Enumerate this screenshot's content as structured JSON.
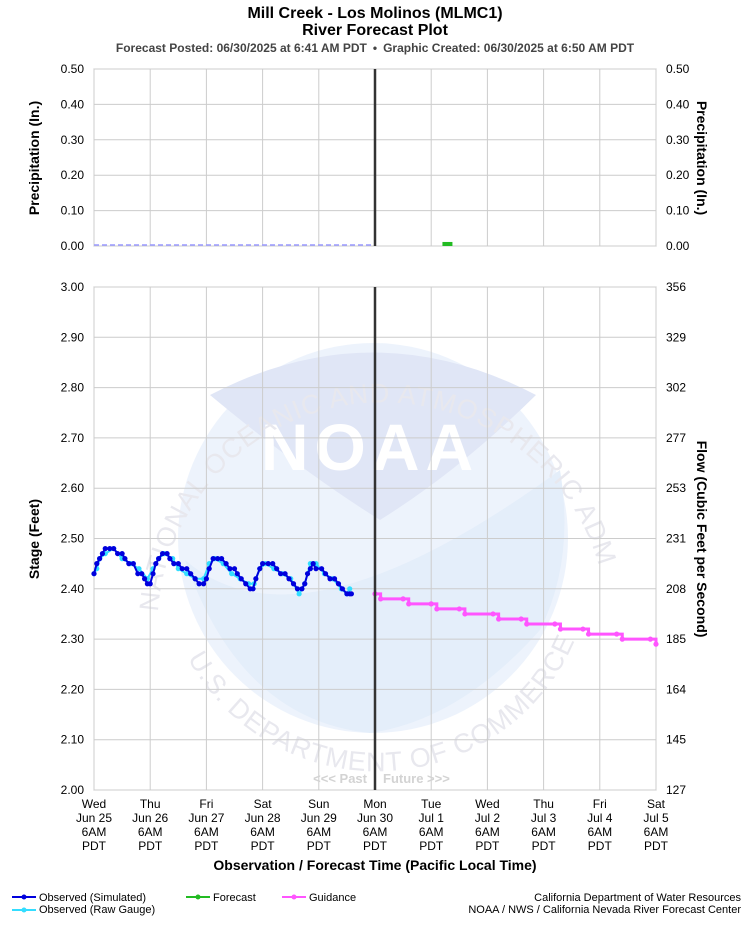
{
  "header": {
    "title": "Mill Creek - Los Molinos (MLMC1)",
    "subtitle": "River Forecast Plot",
    "posted": "Forecast Posted: 06/30/2025 at 6:41 AM PDT",
    "bullet": "•",
    "created": "Graphic Created: 06/30/2025 at 6:50 AM PDT"
  },
  "colors": {
    "observed_simulated": "#0000dd",
    "observed_raw": "#33ddff",
    "forecast": "#22bb22",
    "guidance": "#ff55ff",
    "grid": "#cccccc",
    "now_line": "#333333"
  },
  "watermark": {
    "logo_text": "NOAA",
    "ring_text": "NATIONAL OCEANIC AND ATMOSPHERIC ADMINISTRATION",
    "bottom_text": "U.S. DEPARTMENT OF COMMERCE",
    "past_label": "<<< Past",
    "future_label": "Future >>>"
  },
  "x_axis": {
    "label": "Observation / Forecast Time (Pacific Local Time)",
    "ticks": [
      {
        "day": "Wed",
        "date": "Jun 25",
        "time": "6AM",
        "tz": "PDT"
      },
      {
        "day": "Thu",
        "date": "Jun 26",
        "time": "6AM",
        "tz": "PDT"
      },
      {
        "day": "Fri",
        "date": "Jun 27",
        "time": "6AM",
        "tz": "PDT"
      },
      {
        "day": "Sat",
        "date": "Jun 28",
        "time": "6AM",
        "tz": "PDT"
      },
      {
        "day": "Sun",
        "date": "Jun 29",
        "time": "6AM",
        "tz": "PDT"
      },
      {
        "day": "Mon",
        "date": "Jun 30",
        "time": "6AM",
        "tz": "PDT"
      },
      {
        "day": "Tue",
        "date": "Jul 1",
        "time": "6AM",
        "tz": "PDT"
      },
      {
        "day": "Wed",
        "date": "Jul 2",
        "time": "6AM",
        "tz": "PDT"
      },
      {
        "day": "Thu",
        "date": "Jul 3",
        "time": "6AM",
        "tz": "PDT"
      },
      {
        "day": "Fri",
        "date": "Jul 4",
        "time": "6AM",
        "tz": "PDT"
      },
      {
        "day": "Sat",
        "date": "Jul 5",
        "time": "6AM",
        "tz": "PDT"
      }
    ]
  },
  "chart_data": [
    {
      "type": "bar",
      "panel": "precipitation",
      "ylabel": "Precipitation (In.)",
      "ylabel_right": "Precipitation (In.)",
      "ylim": [
        0,
        0.5
      ],
      "yticks": [
        "0.50",
        "0.40",
        "0.30",
        "0.20",
        "0.10",
        "0.00"
      ],
      "grid": true,
      "series": [
        {
          "name": "Observed (Simulated)",
          "points": [
            [
              "Jun 25 6AM",
              0.0
            ],
            [
              "Jun 30 6AM",
              0.0
            ]
          ]
        },
        {
          "name": "Forecast",
          "points": [
            [
              "Jul 1 6PM",
              0.01
            ]
          ]
        }
      ]
    },
    {
      "type": "line",
      "panel": "stage",
      "ylabel": "Stage (Feet)",
      "ylabel_right": "Flow (Cubic Feet per Second)",
      "ylim": [
        2.0,
        3.0
      ],
      "yticks": [
        "3.00",
        "2.90",
        "2.80",
        "2.70",
        "2.60",
        "2.50",
        "2.40",
        "2.30",
        "2.20",
        "2.10",
        "2.00"
      ],
      "yticks_right": [
        "356",
        "329",
        "302",
        "277",
        "253",
        "231",
        "208",
        "185",
        "164",
        "145",
        "127"
      ],
      "grid": true,
      "series": [
        {
          "name": "Observed (Simulated)",
          "points": [
            [
              0.0,
              2.43
            ],
            [
              0.05,
              2.45
            ],
            [
              0.1,
              2.46
            ],
            [
              0.15,
              2.47
            ],
            [
              0.2,
              2.48
            ],
            [
              0.28,
              2.48
            ],
            [
              0.35,
              2.48
            ],
            [
              0.42,
              2.47
            ],
            [
              0.5,
              2.47
            ],
            [
              0.55,
              2.46
            ],
            [
              0.62,
              2.45
            ],
            [
              0.7,
              2.45
            ],
            [
              0.78,
              2.43
            ],
            [
              0.85,
              2.43
            ],
            [
              0.9,
              2.42
            ],
            [
              0.95,
              2.41
            ],
            [
              1.0,
              2.41
            ],
            [
              1.05,
              2.43
            ],
            [
              1.1,
              2.45
            ],
            [
              1.15,
              2.46
            ],
            [
              1.22,
              2.47
            ],
            [
              1.3,
              2.47
            ],
            [
              1.35,
              2.46
            ],
            [
              1.42,
              2.45
            ],
            [
              1.5,
              2.45
            ],
            [
              1.57,
              2.44
            ],
            [
              1.65,
              2.44
            ],
            [
              1.72,
              2.43
            ],
            [
              1.8,
              2.42
            ],
            [
              1.87,
              2.41
            ],
            [
              1.95,
              2.41
            ],
            [
              2.0,
              2.42
            ],
            [
              2.05,
              2.44
            ],
            [
              2.12,
              2.46
            ],
            [
              2.2,
              2.46
            ],
            [
              2.27,
              2.46
            ],
            [
              2.35,
              2.45
            ],
            [
              2.42,
              2.44
            ],
            [
              2.5,
              2.44
            ],
            [
              2.55,
              2.43
            ],
            [
              2.62,
              2.42
            ],
            [
              2.7,
              2.41
            ],
            [
              2.78,
              2.4
            ],
            [
              2.83,
              2.4
            ],
            [
              2.88,
              2.42
            ],
            [
              2.95,
              2.44
            ],
            [
              3.0,
              2.45
            ],
            [
              3.1,
              2.45
            ],
            [
              3.18,
              2.45
            ],
            [
              3.25,
              2.44
            ],
            [
              3.32,
              2.43
            ],
            [
              3.4,
              2.43
            ],
            [
              3.47,
              2.42
            ],
            [
              3.55,
              2.41
            ],
            [
              3.62,
              2.4
            ],
            [
              3.7,
              2.4
            ],
            [
              3.75,
              2.41
            ],
            [
              3.8,
              2.43
            ],
            [
              3.85,
              2.44
            ],
            [
              3.9,
              2.45
            ],
            [
              3.95,
              2.44
            ],
            [
              4.05,
              2.44
            ],
            [
              4.12,
              2.43
            ],
            [
              4.2,
              2.42
            ],
            [
              4.28,
              2.42
            ],
            [
              4.35,
              2.41
            ],
            [
              4.42,
              2.4
            ],
            [
              4.5,
              2.39
            ],
            [
              4.55,
              2.39
            ],
            [
              4.58,
              2.39
            ]
          ]
        },
        {
          "name": "Observed (Raw Gauge)",
          "points": [
            [
              0.0,
              2.43
            ],
            [
              0.05,
              2.44
            ],
            [
              0.1,
              2.46
            ],
            [
              0.2,
              2.47
            ],
            [
              0.35,
              2.48
            ],
            [
              0.5,
              2.46
            ],
            [
              0.65,
              2.45
            ],
            [
              0.8,
              2.44
            ],
            [
              0.95,
              2.42
            ],
            [
              1.05,
              2.44
            ],
            [
              1.15,
              2.46
            ],
            [
              1.25,
              2.47
            ],
            [
              1.4,
              2.46
            ],
            [
              1.5,
              2.44
            ],
            [
              1.65,
              2.43
            ],
            [
              1.8,
              2.42
            ],
            [
              1.95,
              2.42
            ],
            [
              2.05,
              2.45
            ],
            [
              2.15,
              2.46
            ],
            [
              2.3,
              2.45
            ],
            [
              2.45,
              2.43
            ],
            [
              2.6,
              2.42
            ],
            [
              2.75,
              2.41
            ],
            [
              2.85,
              2.41
            ],
            [
              2.95,
              2.44
            ],
            [
              3.05,
              2.45
            ],
            [
              3.2,
              2.44
            ],
            [
              3.35,
              2.43
            ],
            [
              3.5,
              2.42
            ],
            [
              3.65,
              2.39
            ],
            [
              3.75,
              2.41
            ],
            [
              3.85,
              2.45
            ],
            [
              3.95,
              2.45
            ],
            [
              4.1,
              2.43
            ],
            [
              4.25,
              2.42
            ],
            [
              4.4,
              2.4
            ],
            [
              4.5,
              2.39
            ],
            [
              4.55,
              2.4
            ]
          ]
        },
        {
          "name": "Guidance",
          "points": [
            [
              5.0,
              2.39
            ],
            [
              5.1,
              2.38
            ],
            [
              5.5,
              2.38
            ],
            [
              5.6,
              2.37
            ],
            [
              6.0,
              2.37
            ],
            [
              6.1,
              2.36
            ],
            [
              6.5,
              2.36
            ],
            [
              6.6,
              2.35
            ],
            [
              7.1,
              2.35
            ],
            [
              7.2,
              2.34
            ],
            [
              7.6,
              2.34
            ],
            [
              7.7,
              2.33
            ],
            [
              8.2,
              2.33
            ],
            [
              8.3,
              2.32
            ],
            [
              8.7,
              2.32
            ],
            [
              8.8,
              2.31
            ],
            [
              9.3,
              2.31
            ],
            [
              9.4,
              2.3
            ],
            [
              9.9,
              2.3
            ],
            [
              10.0,
              2.29
            ]
          ]
        }
      ]
    }
  ],
  "legend": {
    "observed_simulated": "Observed (Simulated)",
    "observed_raw": "Observed (Raw Gauge)",
    "forecast": "Forecast",
    "guidance": "Guidance"
  },
  "footer": {
    "agency1": "California Department of Water Resources",
    "agency2": "NOAA / NWS / California Nevada River Forecast Center"
  }
}
